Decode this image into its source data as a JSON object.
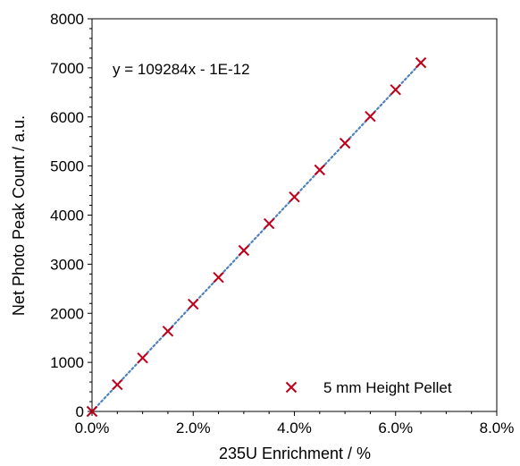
{
  "chart_data": {
    "type": "scatter",
    "xlabel": "235U Enrichment / %",
    "ylabel": "Net Photo Peak Count / a.u.",
    "xlim": [
      0,
      0.08
    ],
    "ylim": [
      0,
      8000
    ],
    "x_ticks": [
      0,
      0.02,
      0.04,
      0.06,
      0.08
    ],
    "x_tick_labels": [
      "0.0%",
      "2.0%",
      "4.0%",
      "6.0%",
      "8.0%"
    ],
    "y_ticks": [
      0,
      1000,
      2000,
      3000,
      4000,
      5000,
      6000,
      7000,
      8000
    ],
    "y_tick_labels": [
      "0",
      "1000",
      "2000",
      "3000",
      "4000",
      "5000",
      "6000",
      "7000",
      "8000"
    ],
    "series": [
      {
        "name": "5 mm Height Pellet",
        "marker": "x",
        "color": "#C0001A",
        "x": [
          0,
          0.005,
          0.01,
          0.015,
          0.02,
          0.025,
          0.03,
          0.035,
          0.04,
          0.045,
          0.05,
          0.055,
          0.06,
          0.065
        ],
        "y": [
          0,
          545,
          1090,
          1635,
          2185,
          2730,
          3280,
          3825,
          4370,
          4920,
          5465,
          6010,
          6555,
          7105
        ]
      }
    ],
    "trendline": {
      "type": "linear",
      "slope": 109284,
      "intercept": 0,
      "x_range": [
        0,
        0.065
      ],
      "style": "dotted",
      "color": "#4F81BD",
      "equation": "y = 109284x - 1E-12"
    },
    "legend": {
      "position": "bottom-right",
      "entries": [
        "5 mm Height Pellet"
      ]
    },
    "grid": false
  }
}
